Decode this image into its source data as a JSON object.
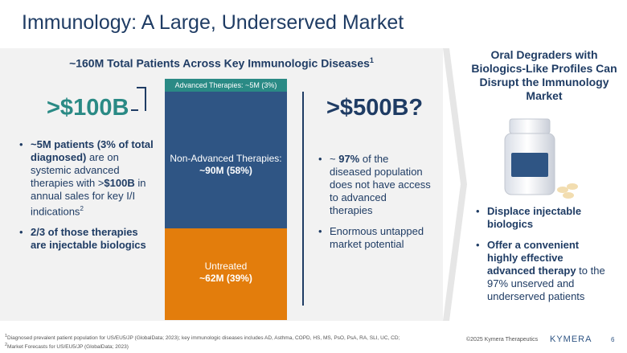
{
  "header": {
    "title": "Immunology: A Large, Underserved Market"
  },
  "left": {
    "subtitle": "~160M Total Patients Across Key Immunologic Diseases",
    "subtitle_sup": "1",
    "big_value": ">$100B",
    "bullets": [
      {
        "b1": "~5M patients (3% of total diagnosed)",
        "t1": " are on systemic advanced therapies with >",
        "b2": "$100B",
        "t2": " in annual sales for key I/I indications",
        "sup": "2"
      },
      {
        "b1": "2/3 of those therapies are injectable biologics"
      }
    ]
  },
  "stack": {
    "top_label": "Advanced Therapies: ~5M (3%)",
    "mid_label": "Non-Advanced Therapies:",
    "mid_value": "~90M (58%)",
    "bot_label": "Untreated",
    "bot_value": "~62M (39%)"
  },
  "middle": {
    "big_value": ">$500B?",
    "bullets": [
      {
        "b1": "97%",
        "pre": "~ ",
        "t1": " of the diseased population does not have access to advanced therapies"
      },
      {
        "t1": "Enormous untapped market potential"
      }
    ]
  },
  "right": {
    "title": "Oral Degraders with Biologics-Like Profiles Can Disrupt the Immunology Market",
    "bullets": [
      {
        "b1": "Displace injectable biologics"
      },
      {
        "b1": "Offer a convenient highly effective advanced therapy",
        "t1": " to the 97% unserved and underserved patients"
      }
    ]
  },
  "footer": {
    "fn1": "Diagnosed prevalent patient population for US/EU5/JP (GlobalData; 2023); key immunologic diseases includes AD, Asthma, COPD, HS, MS, PsO, PsA, RA, SLI, UC, CD;",
    "fn2": "Market Forecasts for US/EU5/JP (GlobalData; 2023)",
    "fn1_sup": "1",
    "fn2_sup": "2",
    "copyright": "©2025 Kymera Therapeutics",
    "logo": "KYMERA",
    "page": "6"
  },
  "colors": {
    "navy": "#1f3c64",
    "teal": "#2a8a85",
    "blue": "#2f5584",
    "orange": "#e37d0c"
  }
}
